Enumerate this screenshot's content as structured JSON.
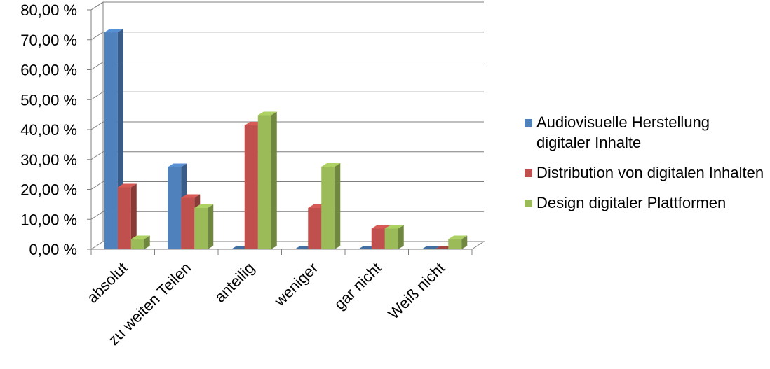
{
  "chart_data": {
    "type": "bar",
    "categories": [
      "absolut",
      "zu weiten Teilen",
      "anteilig",
      "weniger",
      "gar nicht",
      "Weiß nicht"
    ],
    "series": [
      {
        "name": "Audiovisuelle Herstellung digitaler Inhalte",
        "color": "#4F81BD",
        "values": [
          72.5,
          27.5,
          0,
          0,
          0,
          0
        ]
      },
      {
        "name": "Distribution von digitalen Inhalten",
        "color": "#C0504D",
        "values": [
          20.7,
          17.2,
          41.4,
          13.8,
          6.9,
          0
        ]
      },
      {
        "name": "Design digitaler Plattformen",
        "color": "#9BBB59",
        "values": [
          3.4,
          13.8,
          44.8,
          27.6,
          6.9,
          3.4
        ]
      }
    ],
    "ylim": [
      0,
      80
    ],
    "yticks": [
      "0,00 %",
      "10,00 %",
      "20,00 %",
      "30,00 %",
      "40,00 %",
      "50,00 %",
      "60,00 %",
      "70,00 %",
      "80,00 %"
    ],
    "grid": true,
    "legend_position": "right",
    "title": "",
    "xlabel": "",
    "ylabel": ""
  }
}
